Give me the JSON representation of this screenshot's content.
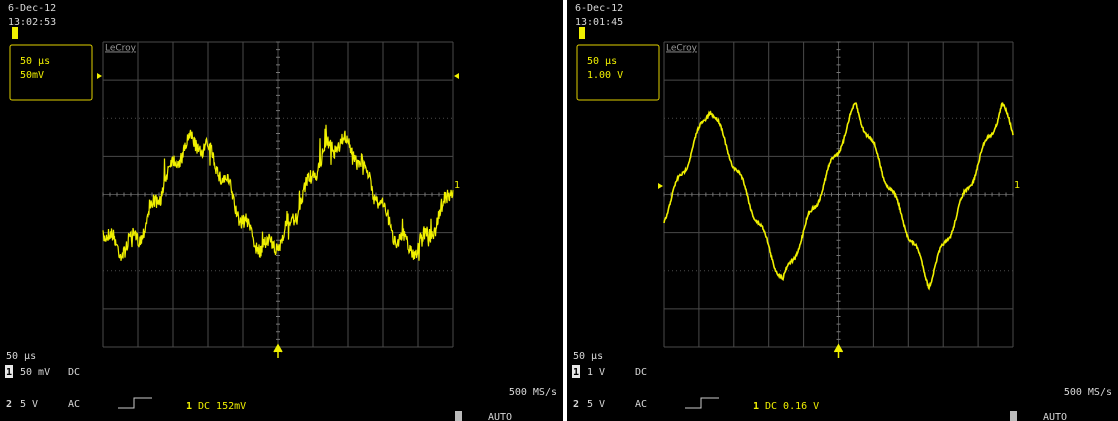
{
  "screens": [
    {
      "date": "6-Dec-12",
      "time": "13:02:53",
      "logo": "LeCroy",
      "timebase": "50 μs",
      "vdiv": "50mV",
      "trace_label": "1",
      "bottom_timebase": "50 μs",
      "ch1": {
        "num": "1",
        "scale": "50 mV",
        "coupling": "DC"
      },
      "ch2": {
        "num": "2",
        "scale": "5 V",
        "coupling": "AC"
      },
      "trigger_channel": "1",
      "trigger": "DC 152mV",
      "sample_rate": "500 MS/s",
      "mode": "AUTO"
    },
    {
      "date": "6-Dec-12",
      "time": "13:01:45",
      "logo": "LeCroy",
      "timebase": "50 μs",
      "vdiv": "1.00 V",
      "trace_label": "1",
      "bottom_timebase": "50 μs",
      "ch1": {
        "num": "1",
        "scale": "1 V",
        "coupling": "DC"
      },
      "ch2": {
        "num": "2",
        "scale": "5 V",
        "coupling": "AC"
      },
      "trigger_channel": "1",
      "trigger": "DC 0.16 V",
      "sample_rate": "500 MS/s",
      "mode": "AUTO"
    }
  ]
}
